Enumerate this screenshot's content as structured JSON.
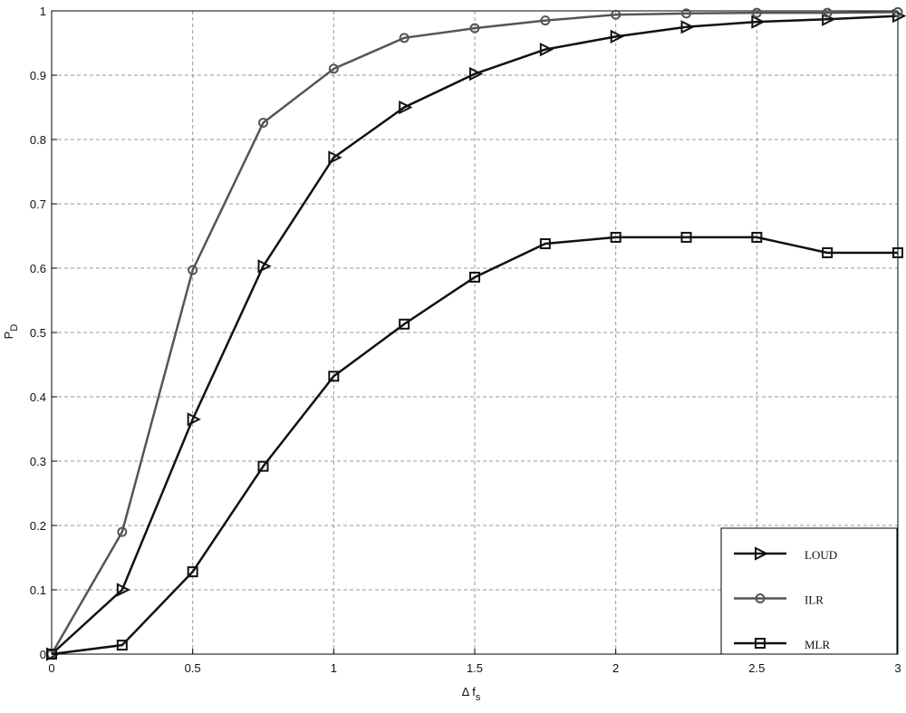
{
  "chart_data": {
    "type": "line",
    "xlabel": {
      "base": "Δ f",
      "sub": "s"
    },
    "ylabel": {
      "base": "P",
      "sub": "D"
    },
    "x": [
      0,
      0.25,
      0.5,
      0.75,
      1,
      1.25,
      1.5,
      1.75,
      2,
      2.25,
      2.5,
      2.75,
      3
    ],
    "series": [
      {
        "name": "LOUD",
        "color": "#111111",
        "marker": "triangle-right",
        "values": [
          0,
          0.1,
          0.365,
          0.603,
          0.772,
          0.85,
          0.902,
          0.94,
          0.96,
          0.975,
          0.983,
          0.987,
          0.992
        ]
      },
      {
        "name": "ILR",
        "color": "#555555",
        "marker": "circle",
        "values": [
          0,
          0.19,
          0.597,
          0.826,
          0.91,
          0.958,
          0.973,
          0.985,
          0.994,
          0.996,
          0.997,
          0.997,
          0.998
        ]
      },
      {
        "name": "MLR",
        "color": "#111111",
        "marker": "square",
        "values": [
          0,
          0.014,
          0.128,
          0.292,
          0.432,
          0.513,
          0.586,
          0.638,
          0.648,
          0.648,
          0.648,
          0.624,
          0.624
        ]
      }
    ],
    "xlim": [
      0,
      3
    ],
    "xticks": [
      0,
      0.5,
      1,
      1.5,
      2,
      2.5,
      3
    ],
    "ylim": [
      0,
      1
    ],
    "yticks": [
      0,
      0.1,
      0.2,
      0.3,
      0.4,
      0.5,
      0.6,
      0.7,
      0.8,
      0.9,
      1
    ],
    "grid": true,
    "legend": "lower right"
  }
}
